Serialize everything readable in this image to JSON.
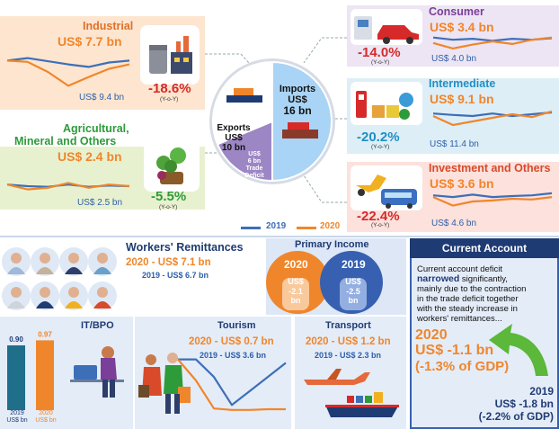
{
  "colors": {
    "series_2019": "#3d6fb8",
    "series_2020": "#f0862b",
    "navy": "#1f3b73",
    "green": "#2e9b3a",
    "red": "#d62a2a"
  },
  "imports": {
    "industrial": {
      "title": "Industrial",
      "v2020": "US$ 7.7 bn",
      "v2019": "US$ 9.4 bn",
      "pct": "-18.6%",
      "yoy": "(Y-o-Y)"
    },
    "agri": {
      "title_line1": "Agricultural,",
      "title_line2": "Mineral and Others",
      "v2020": "US$ 2.4 bn",
      "v2019": "US$ 2.5 bn",
      "pct": "-5.5%",
      "yoy": "(Y-o-Y)"
    },
    "consumer": {
      "title": "Consumer",
      "v2020": "US$ 3.4 bn",
      "v2019": "US$ 4.0 bn",
      "pct": "-14.0%",
      "yoy": "(Y-o-Y)"
    },
    "intermediate": {
      "title": "Intermediate",
      "v2020": "US$ 9.1 bn",
      "v2019": "US$ 11.4 bn",
      "pct": "-20.2%",
      "yoy": "(Y-o-Y)"
    },
    "investment": {
      "title": "Investment and Others",
      "v2020": "US$ 3.6 bn",
      "v2019": "US$ 4.6 bn",
      "pct": "-22.4%",
      "yoy": "(Y-o-Y)"
    }
  },
  "pie": {
    "imports_l1": "Imports",
    "imports_l2": "US$",
    "imports_l3": "16 bn",
    "exports_l1": "Exports",
    "exports_l2": "US$",
    "exports_l3": "10 bn",
    "deficit_l1": "US$",
    "deficit_l2": "6 bn",
    "deficit_l3": "Trade",
    "deficit_l4": "Deficit"
  },
  "legend": {
    "s2019": "2019",
    "s2020": "2020"
  },
  "remittances": {
    "title": "Workers' Remittances",
    "v2020": "2020 - US$ 7.1 bn",
    "v2019": "2019 - US$ 6.7 bn"
  },
  "primary_income": {
    "title": "Primary Income",
    "y2020": "2020",
    "y2019": "2019",
    "v2020_l1": "US$",
    "v2020_l2": "-2.1",
    "v2020_l3": "bn",
    "v2019_l1": "US$",
    "v2019_l2": "-2.5",
    "v2019_l3": "bn"
  },
  "current_account": {
    "title": "Current Account",
    "text_pre": "Current account deficit",
    "text_bold": "narrowed",
    "text_post": "significantly,",
    "text_l3": "mainly due to the contraction",
    "text_l4": "in the trade deficit together",
    "text_l5": "with the steady increase in",
    "text_l6": "workers' remittances...",
    "y2020": "2020",
    "v2020": "US$ -1.1 bn",
    "gdp2020": "(-1.3% of GDP)",
    "y2019": "2019",
    "v2019": "US$ -1.8 bn",
    "gdp2019": "(-2.2% of GDP)"
  },
  "itbpo": {
    "title": "IT/BPO",
    "v2019": "0.90",
    "v2020": "0.97",
    "l2019": "2019",
    "l2020": "2020",
    "unit": "US$ bn"
  },
  "tourism": {
    "title": "Tourism",
    "v2020": "2020 - US$ 0.7 bn",
    "v2019": "2019 - US$ 3.6 bn"
  },
  "transport": {
    "title": "Transport",
    "v2020": "2020 - US$ 1.2 bn",
    "v2019": "2019 - US$ 2.3 bn"
  },
  "chart_data": [
    {
      "type": "pie",
      "categories": [
        "Imports",
        "Exports",
        "Trade Deficit"
      ],
      "values": [
        16,
        10,
        6
      ]
    },
    {
      "type": "bar",
      "title": "IT/BPO",
      "categories": [
        "2019",
        "2020"
      ],
      "values": [
        0.9,
        0.97
      ],
      "ylabel": "US$ bn"
    },
    {
      "type": "line",
      "title": "Industrial",
      "series": [
        {
          "name": "2019",
          "values": [
            0.58,
            0.62,
            0.57,
            0.52,
            0.48,
            0.55,
            0.58
          ]
        },
        {
          "name": "2020",
          "values": [
            0.58,
            0.56,
            0.4,
            0.18,
            0.32,
            0.45,
            0.52
          ]
        }
      ]
    },
    {
      "type": "line",
      "title": "Agricultural, Mineral and Others",
      "series": [
        {
          "name": "2019",
          "values": [
            0.55,
            0.5,
            0.48,
            0.55,
            0.48,
            0.52,
            0.5
          ]
        },
        {
          "name": "2020",
          "values": [
            0.55,
            0.4,
            0.45,
            0.6,
            0.45,
            0.55,
            0.5
          ]
        }
      ]
    },
    {
      "type": "line",
      "title": "Consumer",
      "series": [
        {
          "name": "2019",
          "values": [
            0.62,
            0.55,
            0.58,
            0.52,
            0.58,
            0.55,
            0.6
          ]
        },
        {
          "name": "2020",
          "values": [
            0.45,
            0.28,
            0.4,
            0.5,
            0.42,
            0.55,
            0.62
          ]
        }
      ]
    },
    {
      "type": "line",
      "title": "Intermediate",
      "series": [
        {
          "name": "2019",
          "values": [
            0.62,
            0.58,
            0.55,
            0.62,
            0.55,
            0.6,
            0.65
          ]
        },
        {
          "name": "2020",
          "values": [
            0.55,
            0.3,
            0.4,
            0.5,
            0.6,
            0.52,
            0.68
          ]
        }
      ]
    },
    {
      "type": "line",
      "title": "Investment and Others",
      "series": [
        {
          "name": "2019",
          "values": [
            0.6,
            0.55,
            0.62,
            0.55,
            0.58,
            0.6,
            0.66
          ]
        },
        {
          "name": "2020",
          "values": [
            0.55,
            0.3,
            0.42,
            0.45,
            0.5,
            0.48,
            0.55
          ]
        }
      ]
    },
    {
      "type": "line",
      "title": "Tourism",
      "series": [
        {
          "name": "2019",
          "values": [
            0.8,
            0.8,
            0.55,
            0.15,
            0.35,
            0.55,
            0.75
          ]
        },
        {
          "name": "2020",
          "values": [
            0.8,
            0.5,
            0.1,
            0.08,
            0.08,
            0.09,
            0.09
          ]
        }
      ]
    }
  ]
}
